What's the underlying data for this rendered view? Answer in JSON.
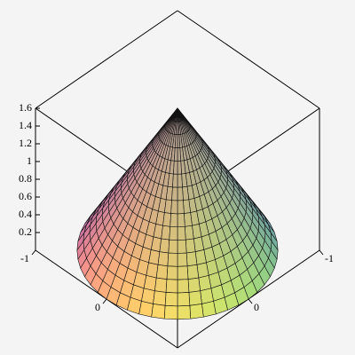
{
  "chart_data": {
    "type": "surface3d",
    "xlim": [
      -1,
      1
    ],
    "ylim": [
      -1,
      1
    ],
    "zlim": [
      0,
      1.6
    ],
    "xticks": [
      -1,
      0
    ],
    "yticks": [
      -1,
      0
    ],
    "zticks": [
      0.2,
      0.4,
      0.6,
      0.8,
      1,
      1.2,
      1.4,
      1.6
    ],
    "surface": {
      "height": 1.6,
      "radius": 1
    }
  }
}
